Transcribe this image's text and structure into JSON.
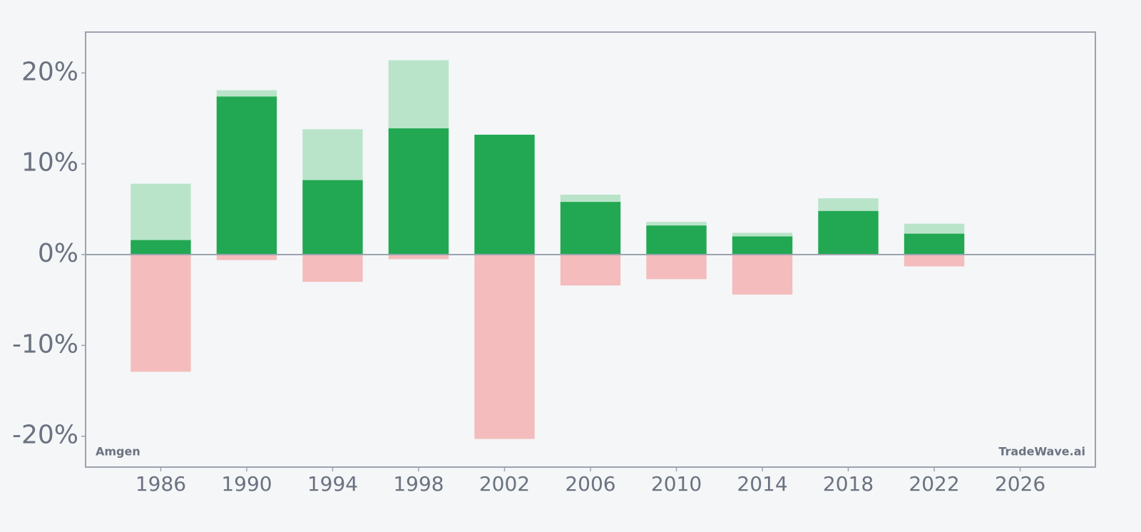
{
  "chart_data": {
    "type": "bar",
    "annotations": [
      "Amgen",
      "TradeWave.ai"
    ],
    "x": [
      1986,
      1990,
      1994,
      1998,
      2002,
      2006,
      2010,
      2014,
      2018,
      2022
    ],
    "bar_width": 2.8,
    "series": [
      {
        "color": "#b9e4c9",
        "values": [
          7.8,
          18.1,
          13.8,
          21.4,
          13.2,
          6.6,
          3.6,
          2.4,
          6.2,
          3.4
        ]
      },
      {
        "color": "#f4bcbc",
        "values": [
          -12.9,
          -0.6,
          -3.0,
          -0.5,
          -20.3,
          -3.4,
          -2.7,
          -4.4,
          0,
          -1.3
        ]
      },
      {
        "color": "#22a852",
        "values": [
          1.6,
          17.4,
          8.2,
          13.9,
          13.2,
          5.8,
          3.2,
          2.0,
          4.8,
          2.3
        ]
      }
    ],
    "xlim": [
      1982.5,
      2029.5
    ],
    "xticks": [
      1986,
      1990,
      1994,
      1998,
      2002,
      2006,
      2010,
      2014,
      2018,
      2022,
      2026
    ],
    "ylim": [
      -23.4,
      24.5
    ],
    "yticks": [
      {
        "value": -20,
        "label": "-20%"
      },
      {
        "value": -10,
        "label": "-10%"
      },
      {
        "value": 0,
        "label": "0%"
      },
      {
        "value": 10,
        "label": "10%"
      },
      {
        "value": 20,
        "label": "20%"
      }
    ],
    "grid": false
  }
}
